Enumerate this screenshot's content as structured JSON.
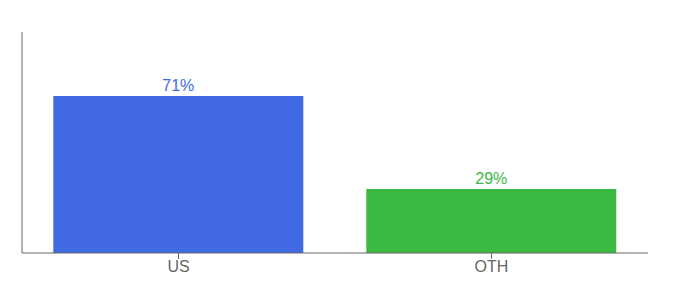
{
  "chart_data": {
    "type": "bar",
    "categories": [
      "US",
      "OTH"
    ],
    "values": [
      71,
      29
    ],
    "value_labels": [
      "71%",
      "29%"
    ],
    "data_labels": true,
    "colors": [
      "#4169E1",
      "#3CB943"
    ],
    "ylim": [
      0,
      100
    ],
    "tick_labels": "x",
    "grid": false
  }
}
